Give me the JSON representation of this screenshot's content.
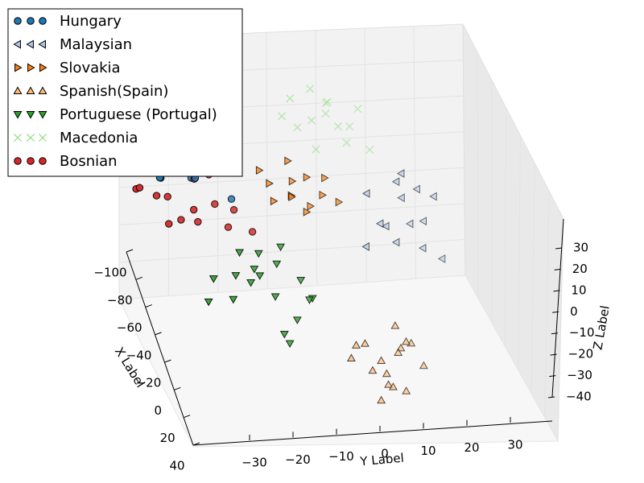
{
  "chart_data": {
    "type": "scatter",
    "projection": "3d",
    "title": "",
    "xlabel": "X Label",
    "ylabel": "Y Label",
    "zlabel": "Z Label",
    "xticks": [
      "−100",
      "−80",
      "−60",
      "−40",
      "−20",
      "0",
      "20",
      "40"
    ],
    "yticks": [
      "−30",
      "−20",
      "−10",
      "0",
      "10",
      "20",
      "30"
    ],
    "zticks": [
      "30",
      "20",
      "10",
      "0",
      "−10",
      "−20",
      "−30",
      "−40"
    ],
    "xlim": [
      -110,
      45
    ],
    "ylim": [
      -40,
      40
    ],
    "zlim": [
      -45,
      40
    ],
    "grid": true,
    "legend_position": "top-left",
    "series": [
      {
        "name": "Hungary",
        "marker": "circle",
        "color": "#1f77b4",
        "points": [
          [
            -85,
            -33,
            7
          ],
          [
            -80,
            -30,
            2
          ],
          [
            -90,
            -36,
            4
          ],
          [
            -75,
            -25,
            10
          ],
          [
            -70,
            -22,
            6
          ],
          [
            -88,
            -20,
            12
          ],
          [
            -78,
            -26,
            -1
          ],
          [
            -65,
            -28,
            3
          ],
          [
            -92,
            -28,
            9
          ],
          [
            -72,
            -33,
            5
          ],
          [
            -60,
            -20,
            7
          ],
          [
            -82,
            -18,
            0
          ],
          [
            -68,
            -15,
            8
          ],
          [
            -95,
            -24,
            5
          ],
          [
            -62,
            -24,
            12
          ],
          [
            -58,
            -12,
            3
          ]
        ]
      },
      {
        "name": "Malaysian",
        "marker": "triangle-left",
        "color": "#aec7e8",
        "points": [
          [
            -45,
            28,
            20
          ],
          [
            -40,
            32,
            15
          ],
          [
            -50,
            30,
            10
          ],
          [
            -38,
            35,
            25
          ],
          [
            -42,
            25,
            5
          ],
          [
            -35,
            22,
            12
          ],
          [
            -48,
            20,
            18
          ],
          [
            -32,
            30,
            8
          ],
          [
            -44,
            36,
            2
          ],
          [
            -36,
            26,
            28
          ],
          [
            -52,
            33,
            22
          ],
          [
            -30,
            20,
            14
          ],
          [
            -46,
            18,
            0
          ],
          [
            -40,
            28,
            30
          ]
        ]
      },
      {
        "name": "Slovakia",
        "marker": "triangle-right",
        "color": "#ff7f0e",
        "points": [
          [
            -70,
            5,
            10
          ],
          [
            -65,
            8,
            14
          ],
          [
            -60,
            3,
            8
          ],
          [
            -55,
            10,
            12
          ],
          [
            -75,
            0,
            6
          ],
          [
            -62,
            12,
            16
          ],
          [
            -68,
            -3,
            12
          ],
          [
            -58,
            6,
            4
          ],
          [
            -72,
            9,
            2
          ],
          [
            -52,
            2,
            10
          ],
          [
            -64,
            15,
            8
          ],
          [
            -56,
            -2,
            6
          ],
          [
            -66,
            4,
            18
          ]
        ]
      },
      {
        "name": "Spanish(Spain)",
        "marker": "triangle-up",
        "color": "#ffbb78",
        "points": [
          [
            15,
            10,
            -20
          ],
          [
            18,
            14,
            -15
          ],
          [
            12,
            8,
            -25
          ],
          [
            20,
            16,
            -10
          ],
          [
            10,
            5,
            -18
          ],
          [
            16,
            12,
            -28
          ],
          [
            22,
            10,
            -22
          ],
          [
            14,
            18,
            -12
          ],
          [
            8,
            12,
            -30
          ],
          [
            19,
            6,
            -14
          ],
          [
            11,
            15,
            -8
          ],
          [
            24,
            14,
            -26
          ],
          [
            13,
            3,
            -22
          ],
          [
            17,
            20,
            -18
          ],
          [
            21,
            8,
            -32
          ],
          [
            9,
            16,
            -16
          ]
        ]
      },
      {
        "name": "Portuguese (Portugal)",
        "marker": "triangle-down",
        "color": "#2ca02c",
        "points": [
          [
            -10,
            -15,
            -5
          ],
          [
            -5,
            -10,
            0
          ],
          [
            0,
            -12,
            -10
          ],
          [
            -8,
            -20,
            -8
          ],
          [
            -2,
            -5,
            -3
          ],
          [
            5,
            -8,
            -15
          ],
          [
            -12,
            -25,
            -12
          ],
          [
            3,
            -18,
            -6
          ],
          [
            -6,
            -14,
            2
          ],
          [
            8,
            -12,
            -20
          ],
          [
            -3,
            -22,
            -15
          ],
          [
            2,
            -4,
            -8
          ],
          [
            -9,
            -8,
            5
          ],
          [
            6,
            -16,
            -2
          ],
          [
            -4,
            -28,
            -18
          ],
          [
            1,
            -10,
            -25
          ],
          [
            -7,
            -2,
            -10
          ],
          [
            4,
            -20,
            4
          ]
        ]
      },
      {
        "name": "Macedonia",
        "marker": "x",
        "color": "#98df8a",
        "points": [
          [
            -95,
            15,
            25
          ],
          [
            -90,
            18,
            30
          ],
          [
            -100,
            12,
            20
          ],
          [
            -85,
            20,
            28
          ],
          [
            -92,
            10,
            32
          ],
          [
            -88,
            22,
            22
          ],
          [
            -98,
            16,
            35
          ],
          [
            -94,
            24,
            26
          ],
          [
            -86,
            14,
            18
          ],
          [
            -102,
            20,
            30
          ],
          [
            -90,
            26,
            34
          ],
          [
            -96,
            8,
            24
          ],
          [
            -84,
            18,
            36
          ],
          [
            -92,
            28,
            20
          ]
        ]
      },
      {
        "name": "Bosnian",
        "marker": "circle",
        "color": "#d62728",
        "points": [
          [
            -55,
            -28,
            0
          ],
          [
            -50,
            -22,
            -5
          ],
          [
            -60,
            -30,
            -2
          ],
          [
            -45,
            -18,
            4
          ],
          [
            -52,
            -35,
            2
          ],
          [
            -58,
            -25,
            -8
          ],
          [
            -48,
            -15,
            -4
          ],
          [
            -62,
            -20,
            6
          ],
          [
            -44,
            -30,
            -6
          ],
          [
            -56,
            -12,
            0
          ],
          [
            -40,
            -24,
            2
          ],
          [
            -66,
            -34,
            -3
          ],
          [
            -42,
            -10,
            -2
          ],
          [
            -64,
            -16,
            8
          ]
        ]
      }
    ]
  }
}
